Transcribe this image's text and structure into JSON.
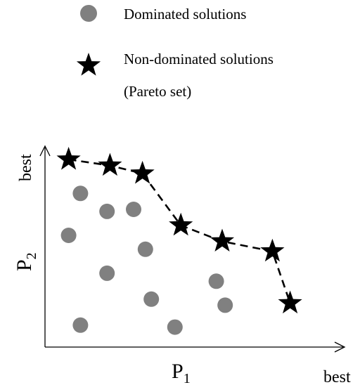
{
  "legend": {
    "dominated_label": "Dominated solutions",
    "nondominated_label": "Non-dominated solutions",
    "nondominated_sublabel": "(Pareto set)"
  },
  "axes": {
    "y_label_main": "P",
    "y_label_sub": "2",
    "y_best": "best",
    "x_label_main": "P",
    "x_label_sub": "1",
    "x_best": "best"
  },
  "colors": {
    "dominated": "#808080",
    "pareto": "#000000",
    "axis": "#000000"
  },
  "chart_data": {
    "type": "scatter",
    "x_range": [
      0,
      10
    ],
    "y_range": [
      0,
      10
    ],
    "dominated": [
      [
        1.2,
        7.7
      ],
      [
        2.1,
        6.8
      ],
      [
        3.0,
        6.9
      ],
      [
        0.8,
        5.6
      ],
      [
        3.4,
        4.9
      ],
      [
        2.1,
        3.7
      ],
      [
        3.6,
        2.4
      ],
      [
        5.8,
        3.3
      ],
      [
        6.1,
        2.1
      ],
      [
        1.2,
        1.1
      ],
      [
        4.4,
        1.0
      ]
    ],
    "pareto": [
      [
        0.8,
        9.4
      ],
      [
        2.2,
        9.1
      ],
      [
        3.3,
        8.7
      ],
      [
        4.6,
        6.1
      ],
      [
        6.0,
        5.3
      ],
      [
        7.7,
        4.8
      ],
      [
        8.3,
        2.2
      ]
    ]
  }
}
